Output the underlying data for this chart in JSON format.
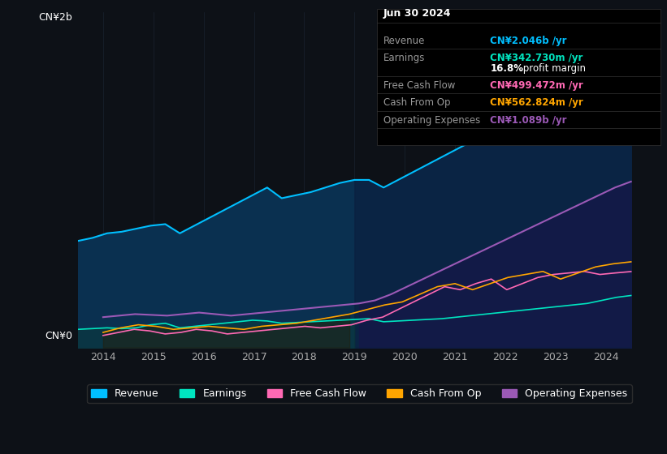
{
  "bg_color": "#0d1117",
  "plot_bg_color": "#0d1117",
  "title": "Jun 30 2024",
  "tooltip": {
    "date": "Jun 30 2024",
    "revenue": "CN¥2.046b /yr",
    "earnings": "CN¥342.730m /yr",
    "profit_margin": "16.8% profit margin",
    "free_cash_flow": "CN¥499.472m /yr",
    "cash_from_op": "CN¥562.824m /yr",
    "operating_expenses": "CN¥1.089b /yr"
  },
  "ylabel_top": "CN¥2b",
  "ylabel_bottom": "CN¥0",
  "x_tick_labels": [
    "2014",
    "2015",
    "2016",
    "2017",
    "2018",
    "2019",
    "2020",
    "2021",
    "2022",
    "2023",
    "2024"
  ],
  "legend": [
    {
      "label": "Revenue",
      "color": "#00bfff"
    },
    {
      "label": "Earnings",
      "color": "#00e5c0"
    },
    {
      "label": "Free Cash Flow",
      "color": "#ff69b4"
    },
    {
      "label": "Cash From Op",
      "color": "#ffa500"
    },
    {
      "label": "Operating Expenses",
      "color": "#9b59b6"
    }
  ],
  "revenue": [
    700,
    720,
    750,
    760,
    780,
    800,
    810,
    750,
    800,
    850,
    900,
    950,
    1000,
    1050,
    980,
    1000,
    1020,
    1050,
    1080,
    1100,
    1100,
    1050,
    1100,
    1150,
    1200,
    1250,
    1300,
    1350,
    1400,
    1500,
    1600,
    1700,
    1800,
    1900,
    2000,
    2100,
    2150,
    2100,
    2046
  ],
  "earnings": [
    120,
    125,
    130,
    125,
    130,
    150,
    160,
    130,
    140,
    150,
    160,
    170,
    180,
    175,
    160,
    165,
    170,
    175,
    180,
    185,
    190,
    170,
    175,
    180,
    185,
    190,
    200,
    210,
    220,
    230,
    240,
    250,
    260,
    270,
    280,
    290,
    310,
    330,
    342
  ],
  "free_cash_flow": [
    80,
    100,
    120,
    110,
    90,
    100,
    120,
    110,
    90,
    100,
    110,
    120,
    130,
    140,
    130,
    140,
    150,
    180,
    200,
    250,
    300,
    350,
    400,
    380,
    420,
    450,
    380,
    420,
    460,
    480,
    490,
    500,
    480,
    490,
    499
  ],
  "cash_from_op": [
    100,
    130,
    150,
    140,
    120,
    130,
    140,
    130,
    120,
    140,
    150,
    160,
    180,
    200,
    220,
    250,
    280,
    300,
    350,
    400,
    420,
    380,
    420,
    460,
    480,
    500,
    450,
    490,
    530,
    550,
    563
  ],
  "operating_expenses": [
    200,
    210,
    220,
    215,
    210,
    220,
    230,
    220,
    210,
    220,
    230,
    240,
    250,
    260,
    270,
    280,
    290,
    310,
    350,
    400,
    450,
    500,
    550,
    600,
    650,
    700,
    750,
    800,
    850,
    900,
    950,
    1000,
    1050,
    1089
  ],
  "shading_split_year": 2019,
  "grid_color": "#1e2a3a",
  "line_colors": {
    "revenue": "#00bfff",
    "earnings": "#00e5c0",
    "free_cash_flow": "#ff69b4",
    "cash_from_op": "#ffa500",
    "operating_expenses": "#9b59b6"
  },
  "fill_colors": {
    "revenue_pre": "#0a3a5a",
    "revenue_post": "#0a2a4a",
    "operating_expenses_post": "#3a1a6a"
  }
}
